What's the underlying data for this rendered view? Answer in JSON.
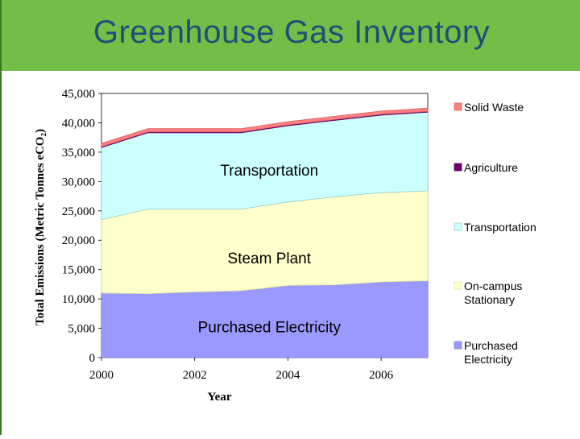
{
  "slide": {
    "title": "Greenhouse Gas Inventory"
  },
  "chart_data": {
    "type": "area",
    "stacked": true,
    "title": "",
    "xlabel": "Year",
    "ylabel": "Total Emissions (Metric Tonnes eCO₂)",
    "x": [
      2000,
      2001,
      2002,
      2003,
      2004,
      2005,
      2006,
      2007
    ],
    "xlim": [
      2000,
      2007
    ],
    "ylim": [
      0,
      45000
    ],
    "x_ticks": [
      "2000",
      "2002",
      "2004",
      "2006"
    ],
    "y_ticks": [
      "0",
      "5,000",
      "10,000",
      "15,000",
      "20,000",
      "25,000",
      "30,000",
      "35,000",
      "40,000",
      "45,000"
    ],
    "grid": false,
    "legend_position": "right",
    "series": [
      {
        "name": "Purchased Electricity",
        "legend": [
          "Purchased",
          "Electricity"
        ],
        "color": "#9999ff",
        "edge": "#7f7fd8",
        "values": [
          11000,
          10900,
          11200,
          11400,
          12300,
          12400,
          12900,
          13100
        ]
      },
      {
        "name": "On-campus Stationary",
        "legend": [
          "On-campus",
          "Stationary"
        ],
        "color": "#ffffcc",
        "edge": "#e6e6a0",
        "values": [
          12500,
          14400,
          14100,
          13900,
          14200,
          15000,
          15200,
          15300
        ]
      },
      {
        "name": "Transportation",
        "legend": [
          "Transportation"
        ],
        "color": "#ccffff",
        "edge": "#99cccc",
        "values": [
          12300,
          13000,
          13000,
          13000,
          13000,
          13000,
          13200,
          13400
        ]
      },
      {
        "name": "Agriculture",
        "legend": [
          "Agriculture"
        ],
        "color": "#660066",
        "edge": "#660066",
        "values": [
          150,
          150,
          150,
          150,
          150,
          150,
          150,
          150
        ]
      },
      {
        "name": "Solid Waste",
        "legend": [
          "Solid Waste"
        ],
        "color": "#ff8080",
        "edge": "#e06060",
        "values": [
          550,
          550,
          550,
          550,
          550,
          550,
          550,
          550
        ]
      }
    ],
    "annotations": [
      {
        "text": "Transportation",
        "x": 2003.6,
        "y": 32000
      },
      {
        "text": "Steam Plant",
        "x": 2003.6,
        "y": 17000
      },
      {
        "text": "Purchased Electricity",
        "x": 2003.6,
        "y": 5300
      }
    ]
  }
}
